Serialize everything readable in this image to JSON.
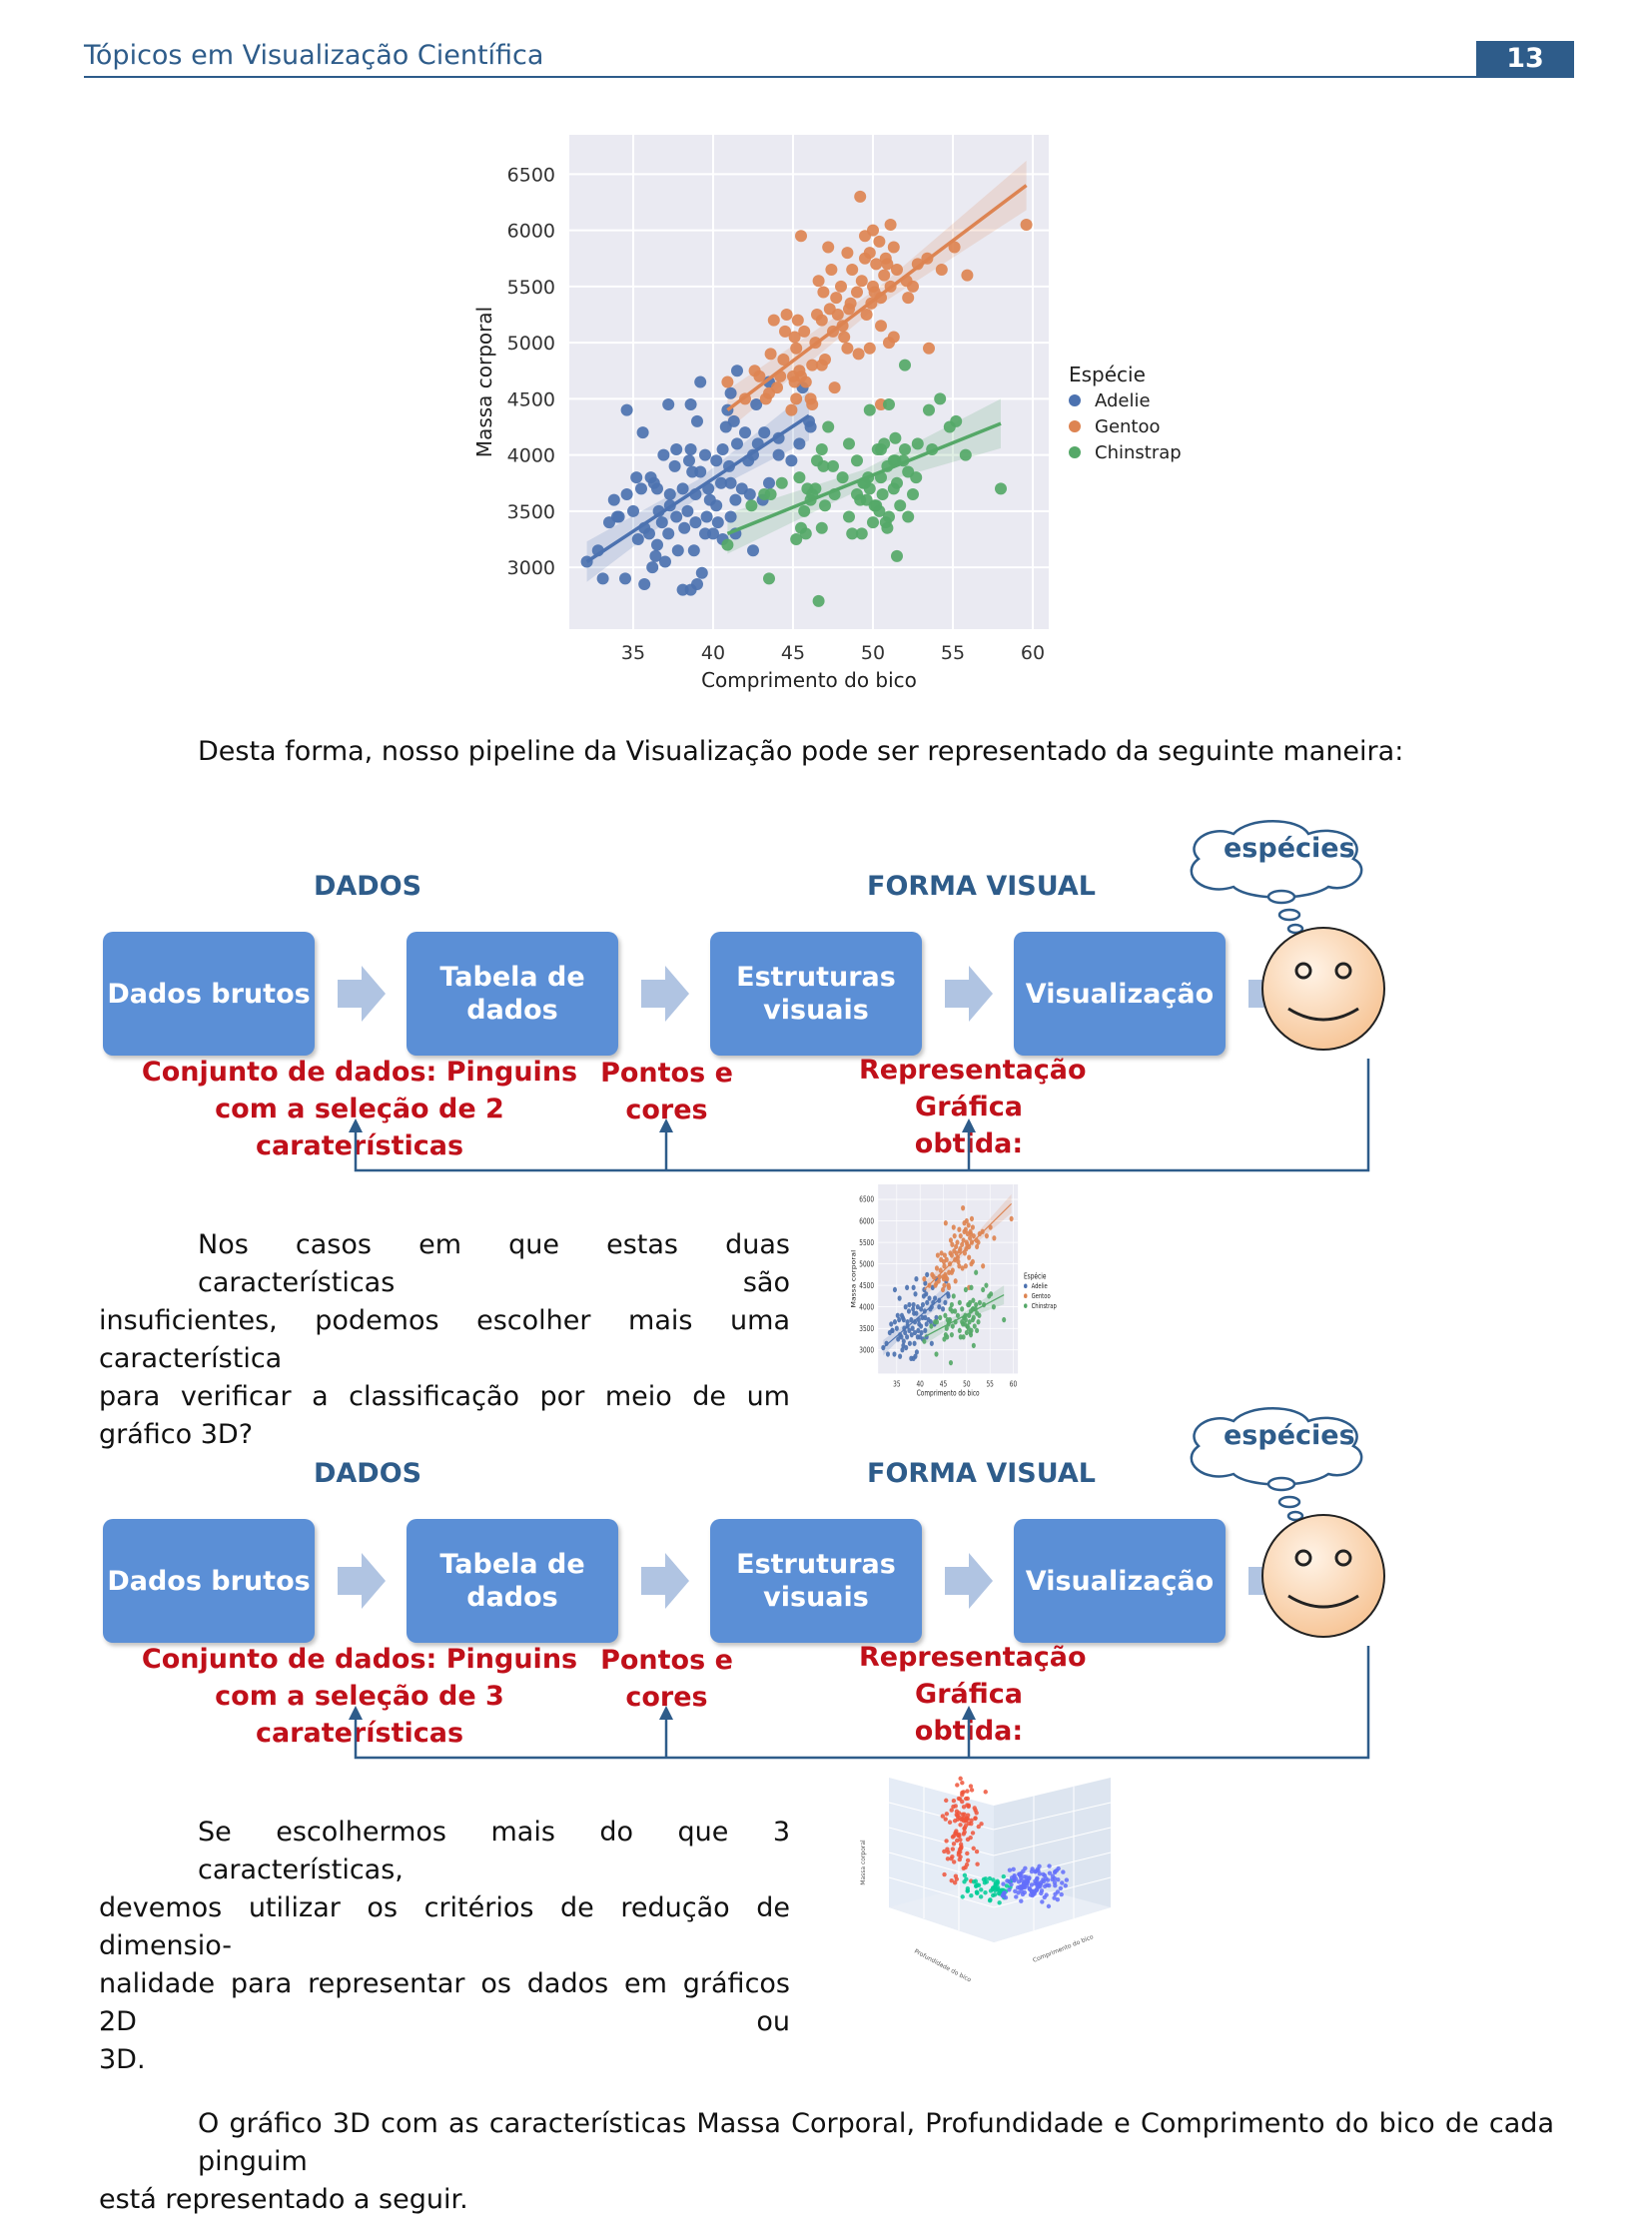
{
  "header": {
    "title": "Tópicos em Visualização Científica",
    "page_number": "13"
  },
  "chart_data": {
    "type": "scatter",
    "xlabel": "Comprimento do bico",
    "ylabel": "Massa corporal",
    "xlim": [
      31,
      61
    ],
    "ylim": [
      2450,
      6850
    ],
    "xticks": [
      35,
      40,
      45,
      50,
      55,
      60
    ],
    "yticks": [
      3000,
      3500,
      4000,
      4500,
      5000,
      5500,
      6000,
      6500
    ],
    "grid": true,
    "legend_title": "Espécie",
    "legend_position": "right",
    "series": [
      {
        "name": "Adelie",
        "color": "#4c72b0",
        "points": [
          [
            32.1,
            3050
          ],
          [
            33.1,
            2900
          ],
          [
            34.5,
            2900
          ],
          [
            35.7,
            2850
          ],
          [
            36.2,
            3000
          ],
          [
            37.0,
            3050
          ],
          [
            38.1,
            2800
          ],
          [
            38.6,
            2800
          ],
          [
            39.0,
            2850
          ],
          [
            36.4,
            3100
          ],
          [
            37.8,
            3150
          ],
          [
            38.8,
            3150
          ],
          [
            35.3,
            3250
          ],
          [
            36.0,
            3300
          ],
          [
            37.2,
            3300
          ],
          [
            38.2,
            3350
          ],
          [
            39.5,
            3300
          ],
          [
            40.6,
            3250
          ],
          [
            34.1,
            3450
          ],
          [
            35.0,
            3500
          ],
          [
            36.6,
            3500
          ],
          [
            37.7,
            3450
          ],
          [
            38.4,
            3500
          ],
          [
            39.6,
            3450
          ],
          [
            40.3,
            3400
          ],
          [
            41.1,
            3450
          ],
          [
            34.6,
            3650
          ],
          [
            35.5,
            3700
          ],
          [
            36.3,
            3750
          ],
          [
            37.3,
            3650
          ],
          [
            38.1,
            3700
          ],
          [
            38.9,
            3650
          ],
          [
            39.7,
            3700
          ],
          [
            40.5,
            3750
          ],
          [
            41.4,
            3600
          ],
          [
            35.2,
            3800
          ],
          [
            36.1,
            3800
          ],
          [
            37.6,
            3900
          ],
          [
            38.5,
            3950
          ],
          [
            39.2,
            3850
          ],
          [
            40.2,
            3950
          ],
          [
            41.0,
            3900
          ],
          [
            42.2,
            3950
          ],
          [
            36.9,
            4000
          ],
          [
            37.7,
            4050
          ],
          [
            38.6,
            4050
          ],
          [
            39.5,
            4000
          ],
          [
            40.6,
            4050
          ],
          [
            41.5,
            4100
          ],
          [
            42.5,
            4000
          ],
          [
            40.8,
            4250
          ],
          [
            41.3,
            4300
          ],
          [
            42.0,
            4200
          ],
          [
            43.2,
            4200
          ],
          [
            44.1,
            4150
          ],
          [
            39.0,
            4300
          ],
          [
            38.6,
            4450
          ],
          [
            40.9,
            4400
          ],
          [
            41.1,
            4550
          ],
          [
            42.7,
            4450
          ],
          [
            43.5,
            4650
          ],
          [
            41.5,
            4750
          ],
          [
            45.6,
            4600
          ],
          [
            46.0,
            4300
          ],
          [
            34.6,
            4400
          ],
          [
            35.6,
            4200
          ],
          [
            39.2,
            4650
          ],
          [
            37.2,
            4450
          ],
          [
            42.3,
            3650
          ],
          [
            43.1,
            3600
          ],
          [
            40.2,
            3550
          ],
          [
            44.1,
            4000
          ],
          [
            41.8,
            3700
          ],
          [
            39.8,
            3600
          ],
          [
            37.3,
            3550
          ],
          [
            36.8,
            3400
          ],
          [
            35.7,
            3350
          ],
          [
            38.9,
            3400
          ],
          [
            40.0,
            3300
          ],
          [
            42.5,
            3150
          ],
          [
            36.5,
            3200
          ],
          [
            39.3,
            2950
          ],
          [
            41.4,
            3300
          ],
          [
            43.5,
            3750
          ],
          [
            44.9,
            3950
          ],
          [
            45.4,
            4100
          ],
          [
            46.1,
            4250
          ],
          [
            34.0,
            3450
          ],
          [
            33.8,
            3600
          ],
          [
            32.8,
            3150
          ],
          [
            33.5,
            3400
          ],
          [
            36.5,
            3700
          ],
          [
            38.7,
            3850
          ],
          [
            41.1,
            3750
          ],
          [
            42.8,
            4100
          ]
        ]
      },
      {
        "name": "Gentoo",
        "color": "#dd8452",
        "points": [
          [
            40.9,
            4650
          ],
          [
            42.0,
            4500
          ],
          [
            42.9,
            4700
          ],
          [
            43.3,
            4500
          ],
          [
            43.6,
            4900
          ],
          [
            44.0,
            4600
          ],
          [
            44.4,
            4850
          ],
          [
            44.5,
            5100
          ],
          [
            45.0,
            4700
          ],
          [
            45.1,
            5050
          ],
          [
            45.2,
            4950
          ],
          [
            45.3,
            5200
          ],
          [
            45.5,
            4700
          ],
          [
            45.7,
            5100
          ],
          [
            46.1,
            4500
          ],
          [
            46.2,
            4800
          ],
          [
            46.4,
            5000
          ],
          [
            46.5,
            5250
          ],
          [
            46.8,
            5200
          ],
          [
            47.0,
            4850
          ],
          [
            47.3,
            5300
          ],
          [
            47.5,
            5100
          ],
          [
            47.7,
            5400
          ],
          [
            48.0,
            5500
          ],
          [
            48.2,
            5050
          ],
          [
            48.5,
            5300
          ],
          [
            48.7,
            5650
          ],
          [
            49.0,
            5450
          ],
          [
            49.1,
            4900
          ],
          [
            49.3,
            5550
          ],
          [
            49.5,
            5750
          ],
          [
            49.6,
            5250
          ],
          [
            49.8,
            5800
          ],
          [
            50.0,
            5500
          ],
          [
            50.2,
            5700
          ],
          [
            50.4,
            5900
          ],
          [
            50.5,
            5400
          ],
          [
            50.7,
            5600
          ],
          [
            50.8,
            5750
          ],
          [
            51.1,
            5500
          ],
          [
            51.3,
            5850
          ],
          [
            51.5,
            5650
          ],
          [
            52.1,
            5550
          ],
          [
            52.2,
            5400
          ],
          [
            52.5,
            5500
          ],
          [
            53.4,
            5750
          ],
          [
            54.3,
            5650
          ],
          [
            55.1,
            5850
          ],
          [
            55.9,
            5600
          ],
          [
            59.6,
            6050
          ],
          [
            49.2,
            6300
          ],
          [
            50.0,
            6000
          ],
          [
            51.1,
            6050
          ],
          [
            49.5,
            5950
          ],
          [
            48.4,
            5800
          ],
          [
            45.5,
            5950
          ],
          [
            47.6,
            4600
          ],
          [
            46.2,
            4450
          ],
          [
            44.9,
            4400
          ],
          [
            45.2,
            4500
          ],
          [
            46.9,
            5450
          ],
          [
            47.4,
            5650
          ],
          [
            48.1,
            5150
          ],
          [
            48.6,
            5350
          ],
          [
            49.9,
            5350
          ],
          [
            50.5,
            5150
          ],
          [
            51.0,
            5000
          ],
          [
            52.8,
            5700
          ],
          [
            46.6,
            5550
          ],
          [
            47.2,
            5850
          ],
          [
            44.2,
            4700
          ],
          [
            45.4,
            4750
          ],
          [
            46.8,
            4800
          ],
          [
            48.4,
            4950
          ],
          [
            47.8,
            5250
          ],
          [
            50.1,
            5450
          ],
          [
            50.9,
            5700
          ],
          [
            43.8,
            5200
          ],
          [
            44.6,
            5250
          ],
          [
            45.8,
            4650
          ],
          [
            50.5,
            4450
          ],
          [
            51.3,
            5050
          ],
          [
            49.8,
            4950
          ],
          [
            53.5,
            4950
          ],
          [
            42.6,
            4750
          ],
          [
            43.5,
            4550
          ],
          [
            45.1,
            4650
          ]
        ]
      },
      {
        "name": "Chinstrap",
        "color": "#55a868",
        "points": [
          [
            40.9,
            3200
          ],
          [
            42.4,
            3550
          ],
          [
            43.5,
            2900
          ],
          [
            43.2,
            3650
          ],
          [
            45.2,
            3250
          ],
          [
            45.5,
            3350
          ],
          [
            45.7,
            3500
          ],
          [
            46.1,
            3600
          ],
          [
            46.4,
            3700
          ],
          [
            46.6,
            2700
          ],
          [
            46.8,
            3350
          ],
          [
            47.0,
            3550
          ],
          [
            46.5,
            3950
          ],
          [
            45.9,
            3700
          ],
          [
            47.5,
            3900
          ],
          [
            48.1,
            3800
          ],
          [
            49.0,
            3650
          ],
          [
            49.2,
            3600
          ],
          [
            49.5,
            3750
          ],
          [
            49.7,
            3800
          ],
          [
            49.8,
            3700
          ],
          [
            50.2,
            3550
          ],
          [
            50.5,
            3800
          ],
          [
            50.8,
            3400
          ],
          [
            50.9,
            3900
          ],
          [
            51.3,
            3700
          ],
          [
            51.5,
            3750
          ],
          [
            51.7,
            3550
          ],
          [
            51.9,
            3950
          ],
          [
            52.0,
            4050
          ],
          [
            52.2,
            3450
          ],
          [
            52.7,
            3800
          ],
          [
            52.8,
            4100
          ],
          [
            53.5,
            4400
          ],
          [
            54.2,
            4500
          ],
          [
            55.8,
            4000
          ],
          [
            58.0,
            3700
          ],
          [
            50.5,
            4050
          ],
          [
            49.3,
            3300
          ],
          [
            51.4,
            3950
          ],
          [
            50.0,
            3400
          ],
          [
            48.5,
            4100
          ],
          [
            47.6,
            3650
          ],
          [
            51.0,
            4450
          ],
          [
            52.0,
            4800
          ],
          [
            50.3,
            4050
          ],
          [
            47.2,
            4250
          ],
          [
            49.8,
            4400
          ],
          [
            46.8,
            4050
          ],
          [
            46.9,
            3900
          ],
          [
            44.3,
            3750
          ],
          [
            43.6,
            3650
          ],
          [
            46.2,
            3650
          ],
          [
            50.6,
            3650
          ],
          [
            50.1,
            3550
          ],
          [
            49.4,
            3750
          ],
          [
            51.3,
            3950
          ],
          [
            52.2,
            3850
          ],
          [
            53.7,
            4050
          ],
          [
            54.8,
            4250
          ],
          [
            55.2,
            4300
          ],
          [
            45.4,
            3800
          ],
          [
            48.7,
            3300
          ],
          [
            51.4,
            4150
          ],
          [
            50.4,
            3500
          ],
          [
            50.9,
            3350
          ],
          [
            48.5,
            3450
          ],
          [
            49.0,
            3950
          ],
          [
            51.5,
            3100
          ],
          [
            45.8,
            3300
          ],
          [
            50.7,
            4100
          ],
          [
            52.5,
            3650
          ],
          [
            49.6,
            3600
          ],
          [
            51.0,
            3450
          ]
        ]
      }
    ],
    "regression": [
      {
        "series": "Adelie",
        "x1": 32.1,
        "y1": 3050,
        "x2": 46.0,
        "y2": 4350
      },
      {
        "series": "Gentoo",
        "x1": 40.9,
        "y1": 4400,
        "x2": 59.6,
        "y2": 6400
      },
      {
        "series": "Chinstrap",
        "x1": 40.9,
        "y1": 3300,
        "x2": 58.0,
        "y2": 4280
      }
    ]
  },
  "intro_text": "Desta forma, nosso pipeline da Visualização pode ser representado da seguinte maneira:",
  "pipelines": [
    {
      "dados_label": "DADOS",
      "forma_visual_label": "FORMA VISUAL",
      "cloud_text": "espécies",
      "boxes": [
        {
          "line1": "Dados brutos",
          "line2": ""
        },
        {
          "line1": "Tabela de",
          "line2": "dados"
        },
        {
          "line1": "Estruturas",
          "line2": "visuais"
        },
        {
          "line1": "Visualização",
          "line2": ""
        }
      ],
      "note_left_1": "Conjunto de dados: Pinguins",
      "note_left_2": "com a seleção de 2 caraterísticas",
      "note_mid_1": "Pontos e",
      "note_mid_2": "cores",
      "note_right_1": "Representação",
      "note_right_2": "Gráfica obtida:"
    },
    {
      "dados_label": "DADOS",
      "forma_visual_label": "FORMA VISUAL",
      "cloud_text": "espécies",
      "boxes": [
        {
          "line1": "Dados brutos",
          "line2": ""
        },
        {
          "line1": "Tabela de",
          "line2": "dados"
        },
        {
          "line1": "Estruturas",
          "line2": "visuais"
        },
        {
          "line1": "Visualização",
          "line2": ""
        }
      ],
      "note_left_1": "Conjunto de dados: Pinguins",
      "note_left_2": "com a seleção de 3 caraterísticas",
      "note_mid_1": "Pontos e",
      "note_mid_2": "cores",
      "note_right_1": "Representação",
      "note_right_2": "Gráfica obtida:"
    }
  ],
  "para_2d": [
    "Nos casos em que estas duas características são",
    "insuficientes, podemos escolher mais uma característica",
    "para verificar a classificação por meio de um gráfico 3D?"
  ],
  "para_3d": [
    "Se escolhermos mais do que 3 características,",
    "devemos utilizar os critérios de redução de dimensio-",
    "nalidade para representar os dados em gráficos 2D ou",
    "3D."
  ],
  "final_text": [
    "O gráfico 3D com as características Massa Corporal, Profundidade e Comprimento do bico de cada pinguim",
    "está representado a seguir."
  ],
  "plot3d": {
    "zlabel": "Massa corporal",
    "xlabel": "Profundidade do bico",
    "ylabel": "Comprimento do bico",
    "colors": {
      "gentoo": "#ef553b",
      "chinstrap": "#00cc96",
      "adelie": "#636efa"
    }
  }
}
